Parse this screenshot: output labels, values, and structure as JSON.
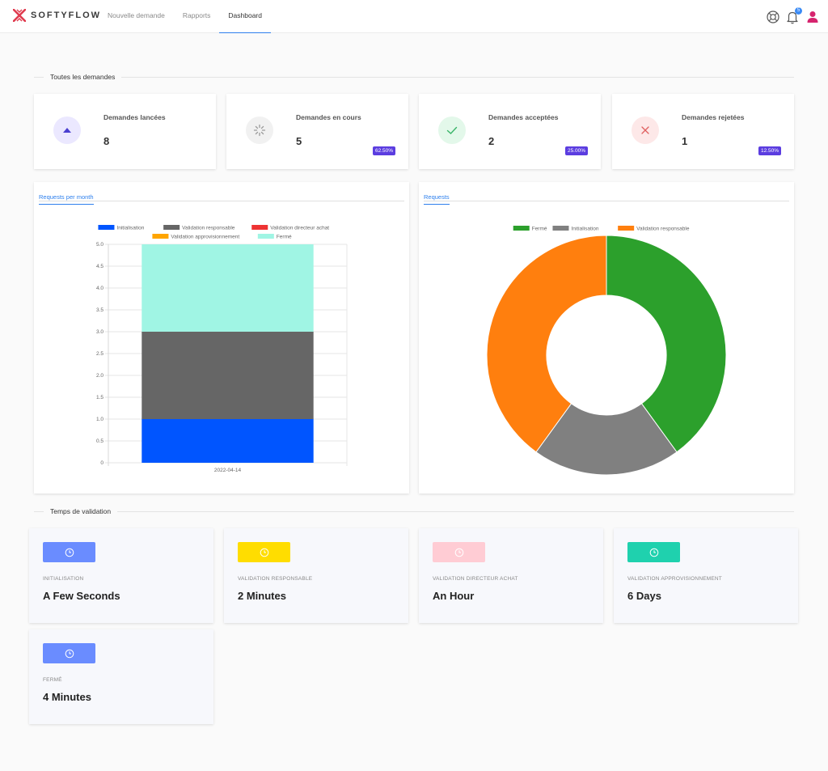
{
  "header": {
    "brand": "SOFTYFLOW",
    "nav": [
      {
        "label": "Nouvelle demande",
        "active": false
      },
      {
        "label": "Rapports",
        "active": false
      },
      {
        "label": "Dashboard",
        "active": true
      }
    ],
    "notification_count": "5",
    "icons": [
      "lifebuoy-icon",
      "bell-icon",
      "user-icon"
    ],
    "accent_color": "#2f80ed"
  },
  "sections": {
    "all_requests": "Toutes les demandes",
    "validation_time": "Temps de validation"
  },
  "stats": [
    {
      "label": "Demandes lancées",
      "value": "8",
      "badge": "",
      "icon": "triangle-up-icon",
      "icon_bg": "#ebe8ff",
      "icon_color": "#4a3fd0"
    },
    {
      "label": "Demandes en cours",
      "value": "5",
      "badge": "62.50%",
      "icon": "spinner-icon",
      "icon_bg": "#f1f1f1",
      "icon_color": "#9a9a9a"
    },
    {
      "label": "Demandes acceptées",
      "value": "2",
      "badge": "25.00%",
      "icon": "check-icon",
      "icon_bg": "#e3f8ea",
      "icon_color": "#3bb56a"
    },
    {
      "label": "Demandes rejetées",
      "value": "1",
      "badge": "12.50%",
      "icon": "close-icon",
      "icon_bg": "#fde8e8",
      "icon_color": "#e06060"
    }
  ],
  "panels": {
    "bar_tab": "Requests per month",
    "pie_tab": "Requests"
  },
  "chart_data": [
    {
      "type": "bar",
      "stacked": true,
      "categories": [
        "2022-04-14"
      ],
      "series": [
        {
          "name": "Initialisation",
          "values": [
            1
          ],
          "color": "#0055ff"
        },
        {
          "name": "Validation responsable",
          "values": [
            2
          ],
          "color": "#666666"
        },
        {
          "name": "Validation directeur achat",
          "values": [
            0
          ],
          "color": "#ee3333"
        },
        {
          "name": "Validation approvisionnement",
          "values": [
            0
          ],
          "color": "#ffa500"
        },
        {
          "name": "Fermé",
          "values": [
            2
          ],
          "color": "#a0f5e4"
        }
      ],
      "ylim": [
        0,
        5
      ],
      "yticks": [
        "0",
        "0.5",
        "1.0",
        "1.5",
        "2.0",
        "2.5",
        "3.0",
        "3.5",
        "4.0",
        "4.5",
        "5.0"
      ],
      "grid": true,
      "legend": "top"
    },
    {
      "type": "pie",
      "donut": true,
      "labels": [
        "Fermé",
        "Initialisation",
        "Validation responsable"
      ],
      "values": [
        2,
        1,
        2
      ],
      "colors": [
        "#2ca02c",
        "#808080",
        "#ff7f0e"
      ],
      "legend": "top"
    }
  ],
  "validation_times": [
    {
      "label": "INITIALISATION",
      "value": "A Few Seconds",
      "color": "#6a8cff"
    },
    {
      "label": "VALIDATION RESPONSABLE",
      "value": "2 Minutes",
      "color": "#ffdd00"
    },
    {
      "label": "VALIDATION DIRECTEUR ACHAT",
      "value": "An Hour",
      "color": "#ffccd4"
    },
    {
      "label": "VALIDATION APPROVISIONNEMENT",
      "value": "6 Days",
      "color": "#1fd1ae"
    },
    {
      "label": "FERMÉ",
      "value": "4 Minutes",
      "color": "#6a8cff"
    }
  ]
}
